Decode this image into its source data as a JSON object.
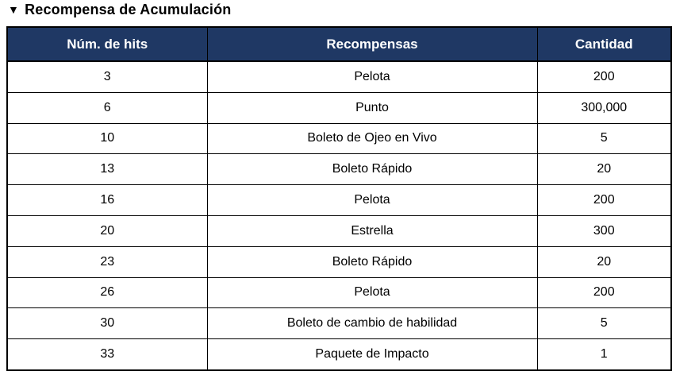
{
  "title": {
    "bullet": "▼",
    "text": "Recompensa de Acumulación"
  },
  "colors": {
    "header_bg": "#1F3864",
    "header_text": "#FFFFFF",
    "border": "#000000",
    "body_bg": "#FFFFFF",
    "body_text": "#000000"
  },
  "table": {
    "columns": [
      "Núm. de hits",
      "Recompensas",
      "Cantidad"
    ],
    "rows": [
      {
        "hits": "3",
        "reward": "Pelota",
        "qty": "200"
      },
      {
        "hits": "6",
        "reward": "Punto",
        "qty": "300,000"
      },
      {
        "hits": "10",
        "reward": "Boleto de Ojeo en Vivo",
        "qty": "5"
      },
      {
        "hits": "13",
        "reward": "Boleto Rápido",
        "qty": "20"
      },
      {
        "hits": "16",
        "reward": "Pelota",
        "qty": "200"
      },
      {
        "hits": "20",
        "reward": "Estrella",
        "qty": "300"
      },
      {
        "hits": "23",
        "reward": "Boleto Rápido",
        "qty": "20"
      },
      {
        "hits": "26",
        "reward": "Pelota",
        "qty": "200"
      },
      {
        "hits": "30",
        "reward": "Boleto de cambio de habilidad",
        "qty": "5"
      },
      {
        "hits": "33",
        "reward": "Paquete de Impacto",
        "qty": "1"
      }
    ]
  }
}
